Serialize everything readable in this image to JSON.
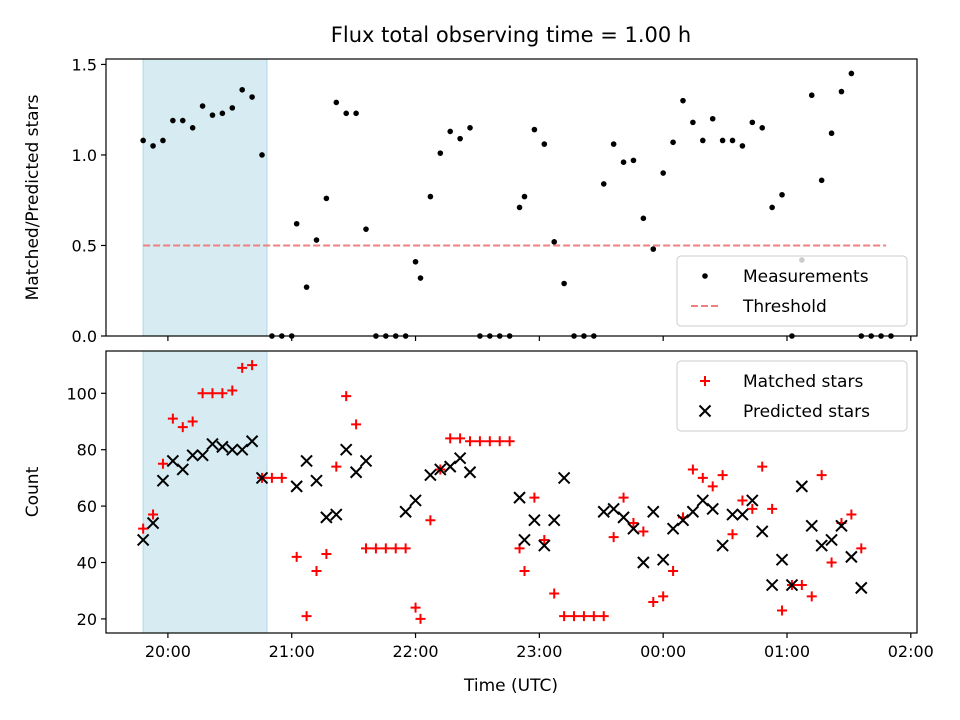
{
  "chart_data": {
    "title": "Flux total observing time = 1.00 h",
    "xlabel": "Time (UTC)",
    "x_axis": {
      "unit": "hours since 19:00 UTC",
      "range": [
        0.5,
        7.05
      ],
      "ticks": [
        1,
        2,
        3,
        4,
        5,
        6,
        7
      ],
      "tick_labels": [
        "20:00",
        "21:00",
        "22:00",
        "23:00",
        "00:00",
        "01:00",
        "02:00"
      ]
    },
    "highlight_band": {
      "x": [
        0.8,
        1.8
      ],
      "color": "#add8e6"
    },
    "panels": [
      {
        "type": "scatter",
        "ylabel": "Matched/Predicted stars",
        "ylim": [
          0,
          1.53
        ],
        "yticks": [
          0.0,
          0.5,
          1.0,
          1.5
        ],
        "ytick_labels": [
          "0.0",
          "0.5",
          "1.0",
          "1.5"
        ],
        "legend_position": "lower-right",
        "series": [
          {
            "name": "Measurements",
            "marker": "dot",
            "color": "#000000",
            "x": [
              0.8,
              0.88,
              0.96,
              1.04,
              1.12,
              1.2,
              1.28,
              1.36,
              1.44,
              1.52,
              1.6,
              1.68,
              1.76,
              1.84,
              1.92,
              2.0,
              2.04,
              2.12,
              2.2,
              2.28,
              2.36,
              2.44,
              2.52,
              2.6,
              2.68,
              2.76,
              2.84,
              2.92,
              3.0,
              3.04,
              3.12,
              3.2,
              3.28,
              3.36,
              3.44,
              3.52,
              3.6,
              3.68,
              3.76,
              3.84,
              3.88,
              3.96,
              4.04,
              4.12,
              4.2,
              4.28,
              4.36,
              4.44,
              4.52,
              4.6,
              4.68,
              4.76,
              4.84,
              4.92,
              5.0,
              5.08,
              5.16,
              5.24,
              5.32,
              5.4,
              5.48,
              5.56,
              5.64,
              5.72,
              5.8,
              5.88,
              5.96,
              6.04,
              6.12,
              6.2,
              6.28,
              6.36,
              6.44,
              6.52,
              6.6,
              6.68,
              6.76,
              6.84
            ],
            "y": [
              1.08,
              1.05,
              1.08,
              1.19,
              1.19,
              1.15,
              1.27,
              1.22,
              1.23,
              1.26,
              1.36,
              1.32,
              1.0,
              0.0,
              0.0,
              0.0,
              0.62,
              0.27,
              0.53,
              0.76,
              1.29,
              1.23,
              1.23,
              0.59,
              0.0,
              0.0,
              0.0,
              0.0,
              0.41,
              0.32,
              0.77,
              1.01,
              1.13,
              1.09,
              1.15,
              0.0,
              0.0,
              0.0,
              0.0,
              0.71,
              0.77,
              1.14,
              1.06,
              0.52,
              0.29,
              0.0,
              0.0,
              0.0,
              0.84,
              1.06,
              0.96,
              0.97,
              0.65,
              0.48,
              0.9,
              1.07,
              1.3,
              1.18,
              1.08,
              1.2,
              1.08,
              1.08,
              1.05,
              1.18,
              1.15,
              0.71,
              0.78,
              0.0,
              0.42,
              1.33,
              0.86,
              1.12,
              1.35,
              1.45,
              0.0,
              0.0,
              0.0,
              0.0
            ]
          },
          {
            "name": "Threshold",
            "marker": "dashed-line",
            "color": "#f08080",
            "x": [
              0.8,
              6.8
            ],
            "y": [
              0.5,
              0.5
            ]
          }
        ]
      },
      {
        "type": "scatter",
        "ylabel": "Count",
        "ylim": [
          15,
          115
        ],
        "yticks": [
          20,
          40,
          60,
          80,
          100
        ],
        "ytick_labels": [
          "20",
          "40",
          "60",
          "80",
          "100"
        ],
        "legend_position": "upper-right",
        "series": [
          {
            "name": "Matched stars",
            "marker": "plus",
            "color": "#ff0000",
            "x": [
              0.8,
              0.88,
              0.96,
              1.04,
              1.12,
              1.2,
              1.28,
              1.36,
              1.44,
              1.52,
              1.6,
              1.68,
              1.76,
              1.84,
              1.92,
              2.04,
              2.12,
              2.2,
              2.28,
              2.36,
              2.44,
              2.52,
              2.6,
              2.68,
              2.76,
              2.84,
              2.92,
              3.0,
              3.04,
              3.12,
              3.2,
              3.28,
              3.36,
              3.44,
              3.52,
              3.6,
              3.68,
              3.76,
              3.84,
              3.88,
              3.96,
              4.04,
              4.12,
              4.2,
              4.28,
              4.36,
              4.44,
              4.52,
              4.6,
              4.68,
              4.76,
              4.84,
              4.92,
              5.0,
              5.08,
              5.16,
              5.24,
              5.32,
              5.4,
              5.48,
              5.56,
              5.64,
              5.72,
              5.8,
              5.88,
              5.96,
              6.04,
              6.12,
              6.2,
              6.28,
              6.36,
              6.44,
              6.52,
              6.6
            ],
            "y": [
              52,
              57,
              75,
              91,
              88,
              90,
              100,
              100,
              100,
              101,
              109,
              110,
              70,
              70,
              70,
              42,
              21,
              37,
              43,
              74,
              99,
              89,
              45,
              45,
              45,
              45,
              45,
              24,
              20,
              55,
              73,
              84,
              84,
              83,
              83,
              83,
              83,
              83,
              45,
              37,
              63,
              48,
              29,
              21,
              21,
              21,
              21,
              21,
              49,
              63,
              54,
              51,
              26,
              28,
              37,
              56,
              73,
              70,
              67,
              71,
              50,
              62,
              59,
              74,
              59,
              23,
              32,
              32,
              28,
              71,
              40,
              54,
              57,
              45
            ]
          },
          {
            "name": "Predicted stars",
            "marker": "x",
            "color": "#000000",
            "x": [
              0.8,
              0.88,
              0.96,
              1.04,
              1.12,
              1.2,
              1.28,
              1.36,
              1.44,
              1.52,
              1.6,
              1.68,
              1.76,
              2.04,
              2.12,
              2.2,
              2.28,
              2.36,
              2.44,
              2.52,
              2.6,
              2.92,
              3.0,
              3.12,
              3.2,
              3.28,
              3.36,
              3.44,
              3.84,
              3.88,
              3.96,
              4.04,
              4.12,
              4.2,
              4.52,
              4.6,
              4.68,
              4.76,
              4.84,
              4.92,
              5.0,
              5.08,
              5.16,
              5.24,
              5.32,
              5.4,
              5.48,
              5.56,
              5.64,
              5.72,
              5.8,
              5.88,
              5.96,
              6.04,
              6.12,
              6.2,
              6.28,
              6.36,
              6.44,
              6.52,
              6.6
            ],
            "y": [
              48,
              54,
              69,
              76,
              73,
              78,
              78,
              82,
              81,
              80,
              80,
              83,
              70,
              67,
              76,
              69,
              56,
              57,
              80,
              72,
              76,
              58,
              62,
              71,
              73,
              74,
              77,
              72,
              63,
              48,
              55,
              46,
              55,
              70,
              58,
              59,
              56,
              52,
              40,
              58,
              41,
              52,
              55,
              58,
              62,
              59,
              46,
              57,
              57,
              62,
              51,
              32,
              41,
              32,
              67,
              53,
              46,
              48,
              53,
              42,
              31
            ]
          }
        ]
      }
    ]
  }
}
